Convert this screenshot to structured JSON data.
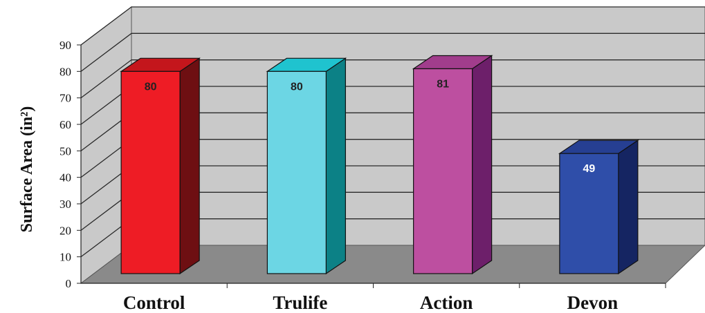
{
  "chart_data": {
    "type": "bar",
    "title": "",
    "xlabel": "",
    "ylabel": "Surface Area (in²)",
    "categories": [
      "Control",
      "Trulife",
      "Action",
      "Devon"
    ],
    "values": [
      80,
      80,
      81,
      49
    ],
    "data_labels": [
      "80",
      "80",
      "81",
      "49"
    ],
    "ylim": [
      0,
      90
    ],
    "yticks": [
      "0",
      "10",
      "20",
      "30",
      "40",
      "50",
      "60",
      "70",
      "80",
      "90"
    ],
    "grid": true,
    "legend": "none",
    "three_d": true,
    "colors": {
      "bars": [
        {
          "front": "#ee1c25",
          "top": "#c4161c",
          "side": "#6e0f12",
          "label": "#222222"
        },
        {
          "front": "#6cd6e4",
          "top": "#1fc3cf",
          "side": "#0c8186",
          "label": "#222222"
        },
        {
          "front": "#bd4fa0",
          "top": "#a13d8c",
          "side": "#6d1f6a",
          "label": "#222222"
        },
        {
          "front": "#2f4ea9",
          "top": "#263f92",
          "side": "#152562",
          "label": "#ffffff"
        }
      ],
      "wall": "#c9c9c9",
      "floor": "#8a8a8a",
      "grid": "#2a2a2a"
    }
  }
}
